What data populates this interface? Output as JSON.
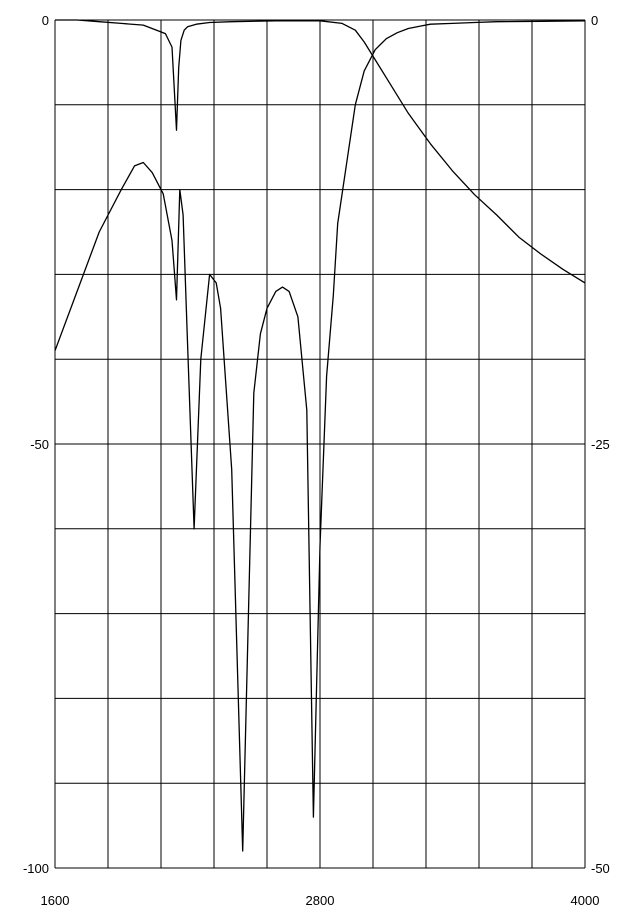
{
  "chart_data": {
    "type": "line",
    "title": "",
    "xlabel": "",
    "ylabel": "",
    "x_ticks": [
      "1600",
      "2800",
      "4000"
    ],
    "y_left_ticks": [
      "0",
      "-50",
      "-100"
    ],
    "y_right_ticks": [
      "0",
      "-25",
      "-50"
    ],
    "xlim": [
      1600,
      4000
    ],
    "ylim_left": [
      -100,
      0
    ],
    "ylim_right": [
      -50,
      0
    ],
    "x_grid_step": 240,
    "y_grid_step_left": 10,
    "grid": true,
    "series": [
      {
        "axis": "left",
        "x": [
          1600,
          1700,
          1800,
          1900,
          1960,
          2000,
          2040,
          2090,
          2130,
          2150,
          2165,
          2180,
          2200,
          2230,
          2260,
          2300,
          2330,
          2350,
          2400,
          2450,
          2500,
          2530,
          2560,
          2600,
          2630,
          2660,
          2700,
          2740,
          2770,
          2800,
          2830,
          2860,
          2880,
          2920,
          2960,
          3000,
          3050,
          3100,
          3150,
          3200,
          3260,
          3300,
          3400,
          3500,
          3600,
          3800,
          4000
        ],
        "y": [
          -39,
          -32,
          -25,
          -20,
          -17.2,
          -16.8,
          -18,
          -20.5,
          -26,
          -33,
          -20,
          -23,
          -38,
          -60,
          -40,
          -30,
          -31,
          -34,
          -53,
          -98,
          -44,
          -37,
          -34,
          -32,
          -31.5,
          -32,
          -35,
          -46,
          -94,
          -62,
          -42,
          -32.5,
          -24,
          -17,
          -10,
          -6,
          -3.5,
          -2.2,
          -1.5,
          -1.0,
          -0.7,
          -0.5,
          -0.4,
          -0.3,
          -0.2,
          -0.15,
          -0.1
        ]
      },
      {
        "axis": "right",
        "x": [
          1600,
          1700,
          1800,
          1900,
          2000,
          2100,
          2130,
          2150,
          2160,
          2170,
          2185,
          2200,
          2240,
          2300,
          2400,
          2600,
          2800,
          2900,
          2960,
          3000,
          3100,
          3200,
          3300,
          3400,
          3500,
          3600,
          3700,
          3800,
          3900,
          4000
        ],
        "y": [
          0,
          0,
          -0.1,
          -0.2,
          -0.3,
          -0.8,
          -1.6,
          -6.5,
          -2.8,
          -1.2,
          -0.6,
          -0.4,
          -0.25,
          -0.15,
          -0.1,
          -0.05,
          -0.05,
          -0.2,
          -0.6,
          -1.3,
          -3.4,
          -5.5,
          -7.3,
          -8.9,
          -10.3,
          -11.5,
          -12.8,
          -13.8,
          -14.7,
          -15.5
        ]
      }
    ],
    "colors": {
      "line": "#000000",
      "grid": "#000000",
      "background": "#ffffff"
    }
  }
}
